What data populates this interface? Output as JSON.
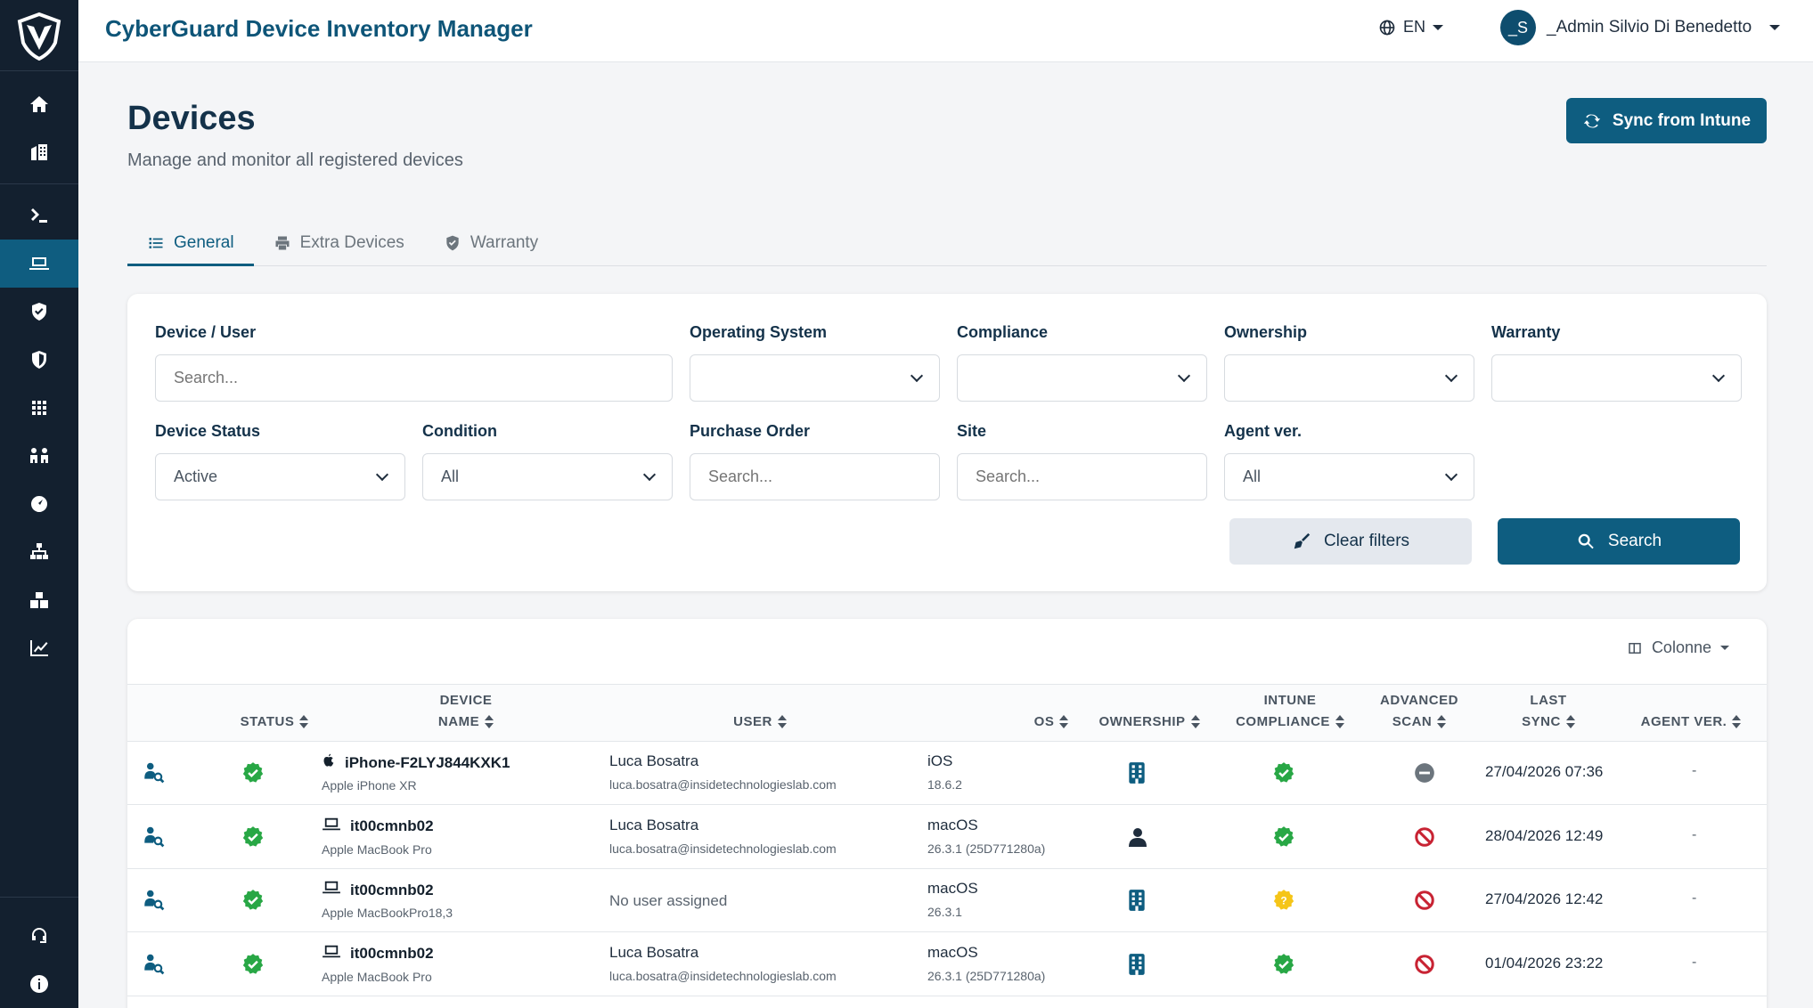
{
  "app": {
    "title": "CyberGuard Device Inventory Manager"
  },
  "topbar": {
    "language": "EN",
    "user_initials": "_S",
    "user_name": "_Admin Silvio Di Benedetto"
  },
  "page": {
    "title": "Devices",
    "subtitle": "Manage and monitor all registered devices",
    "sync_label": "Sync from Intune"
  },
  "tabs": [
    {
      "label": "General",
      "icon": "list-icon",
      "active": true
    },
    {
      "label": "Extra Devices",
      "icon": "printer-icon",
      "active": false
    },
    {
      "label": "Warranty",
      "icon": "shield-icon",
      "active": false
    }
  ],
  "filters": {
    "device_user": {
      "label": "Device / User",
      "placeholder": "Search..."
    },
    "os": {
      "label": "Operating System",
      "value": ""
    },
    "compliance": {
      "label": "Compliance",
      "value": ""
    },
    "ownership": {
      "label": "Ownership",
      "value": ""
    },
    "warranty": {
      "label": "Warranty",
      "value": ""
    },
    "device_status": {
      "label": "Device Status",
      "value": "Active"
    },
    "condition": {
      "label": "Condition",
      "value": "All"
    },
    "purchase_order": {
      "label": "Purchase Order",
      "placeholder": "Search..."
    },
    "site": {
      "label": "Site",
      "placeholder": "Search..."
    },
    "agent_ver": {
      "label": "Agent ver.",
      "value": "All"
    },
    "clear_label": "Clear filters",
    "search_label": "Search"
  },
  "table": {
    "columns_label": "Colonne",
    "headers": {
      "status": "STATUS",
      "device_name_1": "DEVICE",
      "device_name_2": "NAME",
      "user": "USER",
      "os": "OS",
      "ownership": "OWNERSHIP",
      "intune_1": "INTUNE",
      "intune_2": "COMPLIANCE",
      "scan_1": "ADVANCED",
      "scan_2": "SCAN",
      "sync_1": "LAST",
      "sync_2": "SYNC",
      "agent": "AGENT VER."
    },
    "rows": [
      {
        "status": "active",
        "device_icon": "apple-icon",
        "name": "iPhone-F2LYJ844KXK1",
        "model": "Apple iPhone XR",
        "user_name": "Luca Bosatra",
        "user_email": "luca.bosatra@insidetechnologieslab.com",
        "os": "iOS",
        "os_version": "18.6.2",
        "ownership": "corporate-building-icon",
        "compliance": "compliant",
        "advanced_scan": "not-available",
        "last_sync": "27/04/2026 07:36",
        "agent_ver": "-"
      },
      {
        "status": "active",
        "device_icon": "laptop-icon",
        "name": "it00cmnb02",
        "model": "Apple MacBook Pro",
        "user_name": "Luca Bosatra",
        "user_email": "luca.bosatra@insidetechnologieslab.com",
        "os": "macOS",
        "os_version": "26.3.1 (25D771280a)",
        "ownership": "personal-user-icon",
        "compliance": "compliant",
        "advanced_scan": "disabled",
        "last_sync": "28/04/2026 12:49",
        "agent_ver": "-"
      },
      {
        "status": "active",
        "device_icon": "laptop-icon",
        "name": "it00cmnb02",
        "model": "Apple MacBookPro18,3",
        "user_name": "No user assigned",
        "user_email": "",
        "os": "macOS",
        "os_version": "26.3.1",
        "ownership": "corporate-building-icon",
        "compliance": "unknown",
        "advanced_scan": "disabled",
        "last_sync": "27/04/2026 12:42",
        "agent_ver": "-"
      },
      {
        "status": "active",
        "device_icon": "laptop-icon",
        "name": "it00cmnb02",
        "model": "Apple MacBook Pro",
        "user_name": "Luca Bosatra",
        "user_email": "luca.bosatra@insidetechnologieslab.com",
        "os": "macOS",
        "os_version": "26.3.1 (25D771280a)",
        "ownership": "corporate-building-icon",
        "compliance": "compliant",
        "advanced_scan": "disabled",
        "last_sync": "01/04/2026 23:22",
        "agent_ver": "-"
      }
    ]
  },
  "colors": {
    "primary": "#0e5d80",
    "sidebar": "#13202f",
    "success": "#28a745",
    "warning": "#f5c518",
    "danger": "#c82333"
  }
}
